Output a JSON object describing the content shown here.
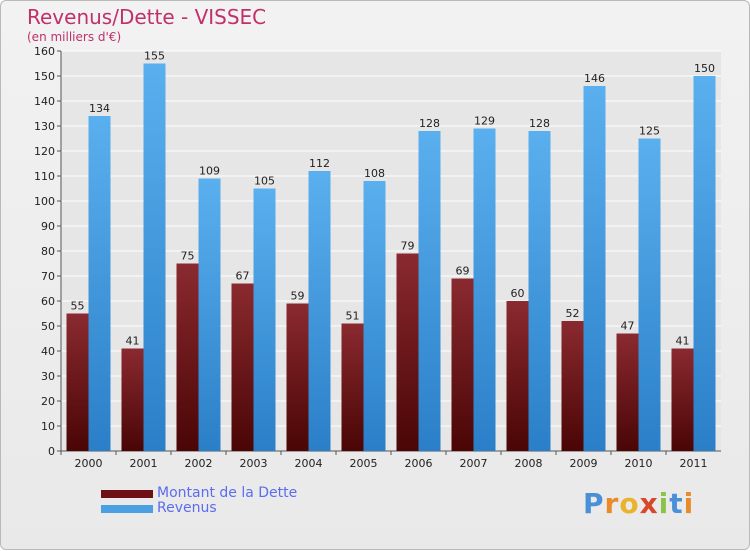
{
  "header": {
    "title": "Revenus/Dette - VISSEC",
    "subtitle": "(en milliers d'€)"
  },
  "colors": {
    "dette": "#7a1e22",
    "revenus": "#4aa0e2",
    "axis": "#555555",
    "grid": "#ffffff"
  },
  "legend": {
    "items": [
      {
        "label": "Montant de la Dette",
        "color": "#6e1016"
      },
      {
        "label": "Revenus",
        "color": "#4aa0e2"
      }
    ]
  },
  "logo": {
    "text": "Proxiti",
    "letters": [
      {
        "ch": "P",
        "color": "#4a90d9"
      },
      {
        "ch": "r",
        "color": "#e98a2b"
      },
      {
        "ch": "o",
        "color": "#e9b42b"
      },
      {
        "ch": "x",
        "color": "#d9472b"
      },
      {
        "ch": "i",
        "color": "#8bc34a"
      },
      {
        "ch": "t",
        "color": "#4a90d9"
      },
      {
        "ch": "i",
        "color": "#e98a2b"
      }
    ]
  },
  "chart_data": {
    "type": "bar",
    "categories": [
      "2000",
      "2001",
      "2002",
      "2003",
      "2004",
      "2005",
      "2006",
      "2007",
      "2008",
      "2009",
      "2010",
      "2011"
    ],
    "series": [
      {
        "name": "Montant de la Dette",
        "values": [
          55,
          41,
          75,
          67,
          59,
          51,
          79,
          69,
          60,
          52,
          47,
          41
        ],
        "color": "#7a1e22"
      },
      {
        "name": "Revenus",
        "values": [
          134,
          155,
          109,
          105,
          112,
          108,
          128,
          129,
          128,
          146,
          125,
          150
        ],
        "color": "#4aa0e2"
      }
    ],
    "title": "Revenus/Dette - VISSEC",
    "ylabel": "(en milliers d'€)",
    "ylim": [
      0,
      160
    ],
    "yticks": [
      0,
      10,
      20,
      30,
      40,
      50,
      60,
      70,
      80,
      90,
      100,
      110,
      120,
      130,
      140,
      150,
      160
    ],
    "grid": true,
    "legend_position": "bottom-left"
  }
}
